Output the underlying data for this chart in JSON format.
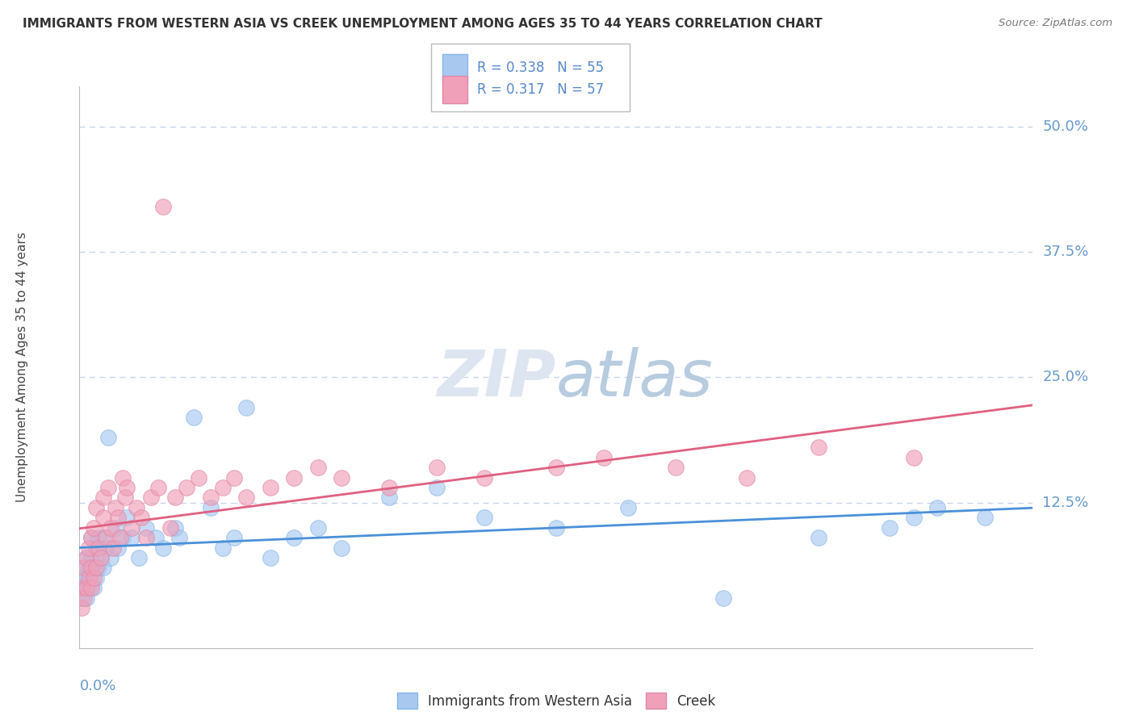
{
  "title": "IMMIGRANTS FROM WESTERN ASIA VS CREEK UNEMPLOYMENT AMONG AGES 35 TO 44 YEARS CORRELATION CHART",
  "source": "Source: ZipAtlas.com",
  "ylabel": "Unemployment Among Ages 35 to 44 years",
  "xlim": [
    0.0,
    0.4
  ],
  "ylim": [
    -0.02,
    0.54
  ],
  "ytick_vals": [
    0.0,
    0.125,
    0.25,
    0.375,
    0.5
  ],
  "ytick_labels": [
    "",
    "12.5%",
    "25.0%",
    "37.5%",
    "50.0%"
  ],
  "series_blue": {
    "name": "Immigrants from Western Asia",
    "color": "#a8c8f0",
    "line_color": "#4a90d9",
    "R": 0.338,
    "N": 55,
    "x": [
      0.001,
      0.001,
      0.002,
      0.002,
      0.003,
      0.003,
      0.003,
      0.004,
      0.004,
      0.005,
      0.005,
      0.005,
      0.006,
      0.006,
      0.007,
      0.007,
      0.008,
      0.008,
      0.009,
      0.01,
      0.01,
      0.011,
      0.012,
      0.013,
      0.015,
      0.016,
      0.018,
      0.02,
      0.022,
      0.025,
      0.028,
      0.032,
      0.035,
      0.04,
      0.042,
      0.048,
      0.055,
      0.06,
      0.065,
      0.07,
      0.08,
      0.09,
      0.1,
      0.11,
      0.13,
      0.15,
      0.17,
      0.2,
      0.23,
      0.27,
      0.31,
      0.35,
      0.34,
      0.36,
      0.38
    ],
    "y": [
      0.03,
      0.05,
      0.04,
      0.06,
      0.03,
      0.05,
      0.07,
      0.04,
      0.06,
      0.05,
      0.07,
      0.09,
      0.04,
      0.06,
      0.05,
      0.08,
      0.06,
      0.09,
      0.07,
      0.06,
      0.09,
      0.08,
      0.19,
      0.07,
      0.1,
      0.08,
      0.09,
      0.11,
      0.09,
      0.07,
      0.1,
      0.09,
      0.08,
      0.1,
      0.09,
      0.21,
      0.12,
      0.08,
      0.09,
      0.22,
      0.07,
      0.09,
      0.1,
      0.08,
      0.13,
      0.14,
      0.11,
      0.1,
      0.12,
      0.03,
      0.09,
      0.11,
      0.1,
      0.12,
      0.11
    ]
  },
  "series_pink": {
    "name": "Creek",
    "color": "#f0a0b8",
    "line_color": "#e06080",
    "R": 0.317,
    "N": 57,
    "x": [
      0.001,
      0.001,
      0.002,
      0.002,
      0.003,
      0.003,
      0.004,
      0.004,
      0.005,
      0.005,
      0.005,
      0.006,
      0.006,
      0.007,
      0.007,
      0.008,
      0.009,
      0.01,
      0.01,
      0.011,
      0.012,
      0.013,
      0.014,
      0.015,
      0.016,
      0.017,
      0.018,
      0.019,
      0.02,
      0.022,
      0.024,
      0.026,
      0.028,
      0.03,
      0.033,
      0.035,
      0.038,
      0.04,
      0.045,
      0.05,
      0.055,
      0.06,
      0.065,
      0.07,
      0.08,
      0.09,
      0.1,
      0.11,
      0.13,
      0.15,
      0.17,
      0.2,
      0.22,
      0.25,
      0.28,
      0.31,
      0.35
    ],
    "y": [
      0.02,
      0.04,
      0.03,
      0.06,
      0.04,
      0.07,
      0.05,
      0.08,
      0.06,
      0.04,
      0.09,
      0.05,
      0.1,
      0.06,
      0.12,
      0.08,
      0.07,
      0.11,
      0.13,
      0.09,
      0.14,
      0.1,
      0.08,
      0.12,
      0.11,
      0.09,
      0.15,
      0.13,
      0.14,
      0.1,
      0.12,
      0.11,
      0.09,
      0.13,
      0.14,
      0.42,
      0.1,
      0.13,
      0.14,
      0.15,
      0.13,
      0.14,
      0.15,
      0.13,
      0.14,
      0.15,
      0.16,
      0.15,
      0.14,
      0.16,
      0.15,
      0.16,
      0.17,
      0.16,
      0.15,
      0.18,
      0.17
    ]
  },
  "background_color": "#ffffff",
  "grid_color": "#c8d4e8",
  "title_color": "#333333",
  "tick_color": "#6699cc",
  "watermark_color": "#dde6f0",
  "legend_text_color": "#333333",
  "legend_R_color": "#5588cc"
}
